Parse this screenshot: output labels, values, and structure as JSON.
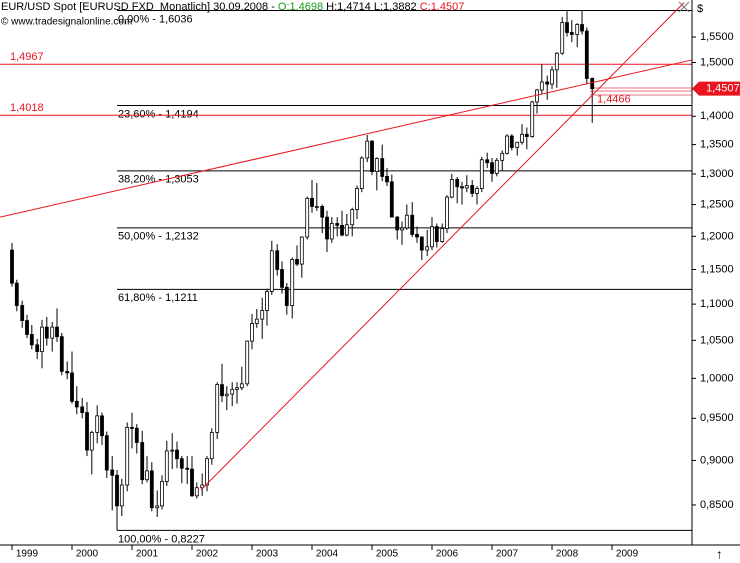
{
  "header": {
    "title": "EUR/USD Spot [EURUSD FXD  Monatlich] 30.09.2008 -",
    "open": "O:1,4698",
    "hl": "H:1,4714 L:1,3882",
    "close": "C:1,4507",
    "copyright": "© www.tradesignalonline.com"
  },
  "chart_data": {
    "type": "candlestick",
    "log_scale": true,
    "xlim": [
      1998.8,
      2010.333
    ],
    "ylim": [
      0.8074,
      1.6254
    ],
    "xticks": [
      {
        "value": 1999,
        "label": "1999"
      },
      {
        "value": 2000,
        "label": "2000"
      },
      {
        "value": 2001,
        "label": "2001"
      },
      {
        "value": 2002,
        "label": "2002"
      },
      {
        "value": 2003,
        "label": "2003"
      },
      {
        "value": 2004,
        "label": "2004"
      },
      {
        "value": 2005,
        "label": "2005"
      },
      {
        "value": 2006,
        "label": "2006"
      },
      {
        "value": 2007,
        "label": "2007"
      },
      {
        "value": 2008,
        "label": "2008"
      },
      {
        "value": 2009,
        "label": "2009"
      }
    ],
    "y_unit": "$",
    "yticks": [
      {
        "value": 0.85,
        "label": "0,8500"
      },
      {
        "value": 0.9,
        "label": "0,9000"
      },
      {
        "value": 0.95,
        "label": "0,9500"
      },
      {
        "value": 1.0,
        "label": "1,0000"
      },
      {
        "value": 1.05,
        "label": "1,0500"
      },
      {
        "value": 1.1,
        "label": "1,1000"
      },
      {
        "value": 1.15,
        "label": "1,1500"
      },
      {
        "value": 1.2,
        "label": "1,2000"
      },
      {
        "value": 1.25,
        "label": "1,2500"
      },
      {
        "value": 1.3,
        "label": "1,3000"
      },
      {
        "value": 1.35,
        "label": "1,3500"
      },
      {
        "value": 1.4,
        "label": "1,4000"
      },
      {
        "value": 1.45,
        "label": "1,4500"
      },
      {
        "value": 1.5,
        "label": "1,5000"
      },
      {
        "value": 1.55,
        "label": "1,5500"
      }
    ],
    "up_color": "#ffffff",
    "down_color": "#000000",
    "line_color": "#e8141e",
    "level_color": "#000000",
    "x": [
      1999.0,
      1999.08,
      1999.17,
      1999.25,
      1999.33,
      1999.42,
      1999.5,
      1999.58,
      1999.67,
      1999.75,
      1999.83,
      1999.92,
      2000.0,
      2000.08,
      2000.17,
      2000.25,
      2000.33,
      2000.42,
      2000.5,
      2000.58,
      2000.67,
      2000.75,
      2000.83,
      2000.92,
      2001.0,
      2001.08,
      2001.17,
      2001.25,
      2001.33,
      2001.42,
      2001.5,
      2001.58,
      2001.67,
      2001.75,
      2001.83,
      2001.92,
      2002.0,
      2002.08,
      2002.17,
      2002.25,
      2002.33,
      2002.42,
      2002.5,
      2002.58,
      2002.67,
      2002.75,
      2002.83,
      2002.92,
      2003.0,
      2003.08,
      2003.17,
      2003.25,
      2003.33,
      2003.42,
      2003.5,
      2003.58,
      2003.67,
      2003.75,
      2003.83,
      2003.92,
      2004.0,
      2004.08,
      2004.17,
      2004.25,
      2004.33,
      2004.42,
      2004.5,
      2004.58,
      2004.67,
      2004.75,
      2004.83,
      2004.92,
      2005.0,
      2005.08,
      2005.17,
      2005.25,
      2005.33,
      2005.42,
      2005.5,
      2005.58,
      2005.67,
      2005.75,
      2005.83,
      2005.92,
      2006.0,
      2006.08,
      2006.17,
      2006.25,
      2006.33,
      2006.42,
      2006.5,
      2006.58,
      2006.67,
      2006.75,
      2006.83,
      2006.92,
      2007.0,
      2007.08,
      2007.17,
      2007.25,
      2007.33,
      2007.42,
      2007.5,
      2007.58,
      2007.67,
      2007.75,
      2007.83,
      2007.92,
      2008.0,
      2008.08,
      2008.17,
      2008.25,
      2008.33,
      2008.42,
      2008.5,
      2008.58,
      2008.67
    ],
    "open": [
      1.179,
      1.13,
      1.098,
      1.077,
      1.058,
      1.044,
      1.035,
      1.068,
      1.053,
      1.068,
      1.055,
      1.009,
      1.007,
      0.971,
      0.964,
      0.957,
      0.912,
      0.933,
      0.953,
      0.929,
      0.889,
      0.883,
      0.849,
      0.872,
      0.939,
      0.938,
      0.921,
      0.878,
      0.888,
      0.847,
      0.849,
      0.876,
      0.911,
      0.912,
      0.902,
      0.891,
      0.89,
      0.86,
      0.869,
      0.872,
      0.902,
      0.933,
      0.992,
      0.978,
      0.98,
      0.986,
      0.988,
      0.993,
      1.049,
      1.073,
      1.079,
      1.091,
      1.118,
      1.178,
      1.15,
      1.124,
      1.098,
      1.165,
      1.158,
      1.199,
      1.26,
      1.247,
      1.247,
      1.23,
      1.196,
      1.22,
      1.217,
      1.202,
      1.218,
      1.242,
      1.276,
      1.327,
      1.356,
      1.304,
      1.326,
      1.296,
      1.287,
      1.23,
      1.21,
      1.213,
      1.233,
      1.203,
      1.199,
      1.179,
      1.184,
      1.215,
      1.192,
      1.212,
      1.262,
      1.291,
      1.279,
      1.277,
      1.281,
      1.268,
      1.276,
      1.324,
      1.319,
      1.301,
      1.323,
      1.335,
      1.365,
      1.345,
      1.354,
      1.368,
      1.364,
      1.426,
      1.448,
      1.463,
      1.459,
      1.486,
      1.518,
      1.579,
      1.559,
      1.555,
      1.575,
      1.562,
      1.4698
    ],
    "high": [
      1.19,
      1.135,
      1.105,
      1.085,
      1.071,
      1.052,
      1.078,
      1.082,
      1.075,
      1.094,
      1.06,
      1.022,
      1.035,
      0.99,
      0.975,
      0.97,
      0.935,
      0.966,
      0.957,
      0.934,
      0.905,
      0.889,
      0.879,
      0.945,
      0.957,
      0.943,
      0.935,
      0.905,
      0.898,
      0.866,
      0.883,
      0.923,
      0.932,
      0.922,
      0.905,
      0.905,
      0.905,
      0.875,
      0.885,
      0.905,
      0.938,
      0.995,
      1.019,
      0.99,
      0.995,
      0.995,
      1.015,
      1.05,
      1.086,
      1.093,
      1.109,
      1.122,
      1.193,
      1.188,
      1.162,
      1.13,
      1.168,
      1.186,
      1.2,
      1.263,
      1.29,
      1.285,
      1.25,
      1.24,
      1.23,
      1.23,
      1.24,
      1.235,
      1.245,
      1.281,
      1.33,
      1.3667,
      1.358,
      1.328,
      1.35,
      1.31,
      1.299,
      1.232,
      1.223,
      1.25,
      1.254,
      1.215,
      1.2,
      1.21,
      1.23,
      1.22,
      1.22,
      1.265,
      1.3,
      1.295,
      1.287,
      1.298,
      1.29,
      1.28,
      1.329,
      1.336,
      1.327,
      1.327,
      1.34,
      1.368,
      1.368,
      1.355,
      1.386,
      1.38,
      1.428,
      1.45,
      1.497,
      1.475,
      1.493,
      1.52,
      1.59,
      1.602,
      1.584,
      1.578,
      1.6036,
      1.569,
      1.4714
    ],
    "low": [
      1.125,
      1.09,
      1.067,
      1.053,
      1.038,
      1.025,
      1.013,
      1.043,
      1.035,
      1.048,
      1.004,
      0.999,
      0.968,
      0.955,
      0.95,
      0.905,
      0.884,
      0.92,
      0.918,
      0.88,
      0.844,
      0.8227,
      0.838,
      0.865,
      0.914,
      0.908,
      0.873,
      0.875,
      0.843,
      0.837,
      0.845,
      0.871,
      0.89,
      0.891,
      0.874,
      0.873,
      0.859,
      0.857,
      0.86,
      0.865,
      0.895,
      0.925,
      0.97,
      0.96,
      0.965,
      0.968,
      0.985,
      0.99,
      1.038,
      1.067,
      1.052,
      1.07,
      1.113,
      1.141,
      1.115,
      1.085,
      1.08,
      1.155,
      1.138,
      1.195,
      1.237,
      1.24,
      1.205,
      1.176,
      1.19,
      1.2,
      1.2,
      1.2,
      1.2,
      1.227,
      1.27,
      1.32,
      1.298,
      1.273,
      1.288,
      1.28,
      1.23,
      1.195,
      1.187,
      1.21,
      1.199,
      1.19,
      1.164,
      1.17,
      1.179,
      1.183,
      1.19,
      1.205,
      1.26,
      1.252,
      1.25,
      1.27,
      1.262,
      1.25,
      1.27,
      1.31,
      1.287,
      1.296,
      1.305,
      1.333,
      1.34,
      1.331,
      1.35,
      1.342,
      1.362,
      1.405,
      1.44,
      1.43,
      1.45,
      1.452,
      1.515,
      1.551,
      1.54,
      1.53,
      1.555,
      1.46,
      1.3882
    ],
    "close": [
      1.13,
      1.098,
      1.077,
      1.058,
      1.044,
      1.035,
      1.068,
      1.053,
      1.068,
      1.055,
      1.009,
      1.007,
      0.971,
      0.964,
      0.957,
      0.912,
      0.933,
      0.953,
      0.929,
      0.889,
      0.883,
      0.849,
      0.872,
      0.939,
      0.938,
      0.921,
      0.878,
      0.888,
      0.847,
      0.849,
      0.876,
      0.911,
      0.912,
      0.902,
      0.891,
      0.89,
      0.86,
      0.869,
      0.872,
      0.902,
      0.933,
      0.992,
      0.978,
      0.98,
      0.986,
      0.988,
      0.993,
      1.049,
      1.073,
      1.079,
      1.091,
      1.118,
      1.178,
      1.15,
      1.124,
      1.098,
      1.165,
      1.158,
      1.199,
      1.26,
      1.247,
      1.247,
      1.23,
      1.196,
      1.22,
      1.217,
      1.202,
      1.218,
      1.242,
      1.276,
      1.327,
      1.356,
      1.304,
      1.326,
      1.296,
      1.287,
      1.23,
      1.21,
      1.213,
      1.233,
      1.203,
      1.199,
      1.179,
      1.184,
      1.215,
      1.192,
      1.212,
      1.262,
      1.291,
      1.279,
      1.277,
      1.281,
      1.268,
      1.276,
      1.324,
      1.319,
      1.301,
      1.323,
      1.335,
      1.365,
      1.345,
      1.354,
      1.368,
      1.364,
      1.426,
      1.448,
      1.463,
      1.459,
      1.486,
      1.518,
      1.579,
      1.559,
      1.555,
      1.575,
      1.562,
      1.4698,
      1.4507
    ],
    "fibonacci": [
      {
        "value": 1.6036,
        "label": "0,00% - 1,6036"
      },
      {
        "value": 1.4194,
        "label": "23,60% - 1,4194"
      },
      {
        "value": 1.3053,
        "label": "38,20% - 1,3053"
      },
      {
        "value": 1.2132,
        "label": "50,00% - 1,2132"
      },
      {
        "value": 1.1211,
        "label": "61,80% - 1,1211"
      },
      {
        "value": 0.8227,
        "label": "100,00% - 0,8227"
      }
    ],
    "fib_start": 2000.75,
    "levels": [
      {
        "value": 1.4967,
        "label": "1,4967"
      },
      {
        "value": 1.4018,
        "label": "1,4018"
      }
    ],
    "trendlines": [
      {
        "x": [
          1998.8,
          2010.333
        ],
        "y": [
          1.23,
          1.505
        ]
      },
      {
        "x": [
          2002.15,
          2010.2
        ],
        "y": [
          0.8666,
          1.62
        ]
      }
    ],
    "annotation": {
      "value": 1.4466,
      "label": "1,4466",
      "x": 2008.75
    },
    "last_price": {
      "value": 1.4507,
      "label": "1,4507"
    }
  }
}
